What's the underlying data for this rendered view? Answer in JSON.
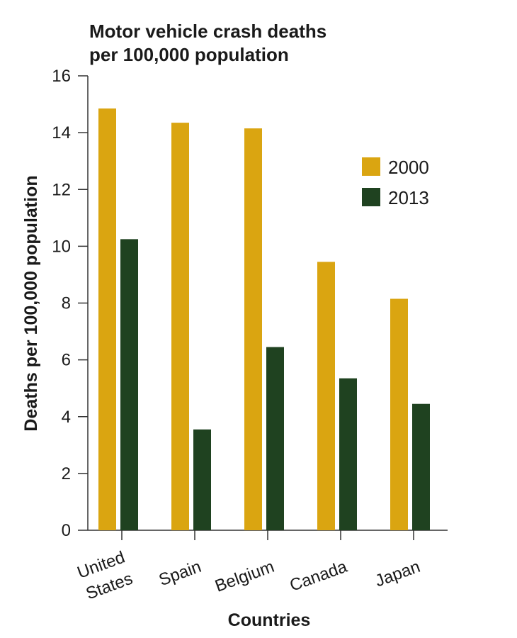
{
  "chart_data": {
    "type": "bar",
    "title_lines": [
      "Motor vehicle crash deaths",
      "per 100,000 population"
    ],
    "xlabel": "Countries",
    "ylabel": "Deaths per 100,000 population",
    "categories": [
      [
        "United",
        "States"
      ],
      [
        "Spain"
      ],
      [
        "Belgium"
      ],
      [
        "Canada"
      ],
      [
        "Japan"
      ]
    ],
    "series": [
      {
        "name": "2000",
        "color": "#DAA511",
        "values": [
          14.85,
          14.35,
          14.15,
          9.45,
          8.15
        ]
      },
      {
        "name": "2013",
        "color": "#1F4220",
        "values": [
          10.25,
          3.55,
          6.45,
          5.35,
          4.45
        ]
      }
    ],
    "ylim": [
      0,
      16
    ],
    "yticks": [
      "0",
      "2",
      "4",
      "6",
      "8",
      "10",
      "12",
      "14",
      "16"
    ],
    "grid": false,
    "legend_position": "top-right"
  }
}
